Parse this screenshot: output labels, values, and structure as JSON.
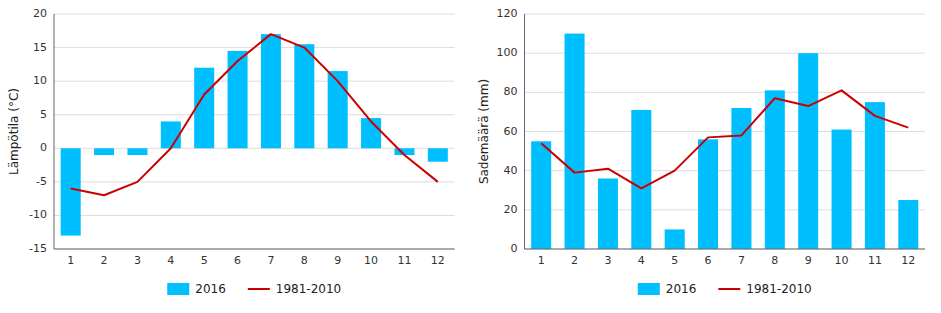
{
  "chart_data": [
    {
      "type": "bar",
      "categories": [
        "1",
        "2",
        "3",
        "4",
        "5",
        "6",
        "7",
        "8",
        "9",
        "10",
        "11",
        "12"
      ],
      "series": [
        {
          "name": "2016",
          "type": "bar",
          "color": "#00BFFF",
          "values": [
            -13,
            -1,
            -1,
            4,
            12,
            14.5,
            17,
            15.5,
            11.5,
            4.5,
            -1,
            -2
          ]
        },
        {
          "name": "1981-2010",
          "type": "line",
          "color": "#CC0000",
          "values": [
            -6,
            -7,
            -5,
            0,
            8,
            13,
            17,
            15,
            10,
            4,
            -1,
            -5
          ]
        }
      ],
      "ylabel": "Lämpötila (°C)",
      "ylim": [
        -15,
        20
      ],
      "yticks": [
        -15,
        -10,
        -5,
        0,
        5,
        10,
        15,
        20
      ],
      "grid": true,
      "legend": "bottom"
    },
    {
      "type": "bar",
      "categories": [
        "1",
        "2",
        "3",
        "4",
        "5",
        "6",
        "7",
        "8",
        "9",
        "10",
        "11",
        "12"
      ],
      "series": [
        {
          "name": "2016",
          "type": "bar",
          "color": "#00BFFF",
          "values": [
            55,
            110,
            36,
            71,
            10,
            56,
            72,
            81,
            100,
            61,
            75,
            25
          ]
        },
        {
          "name": "1981-2010",
          "type": "line",
          "color": "#CC0000",
          "values": [
            54,
            39,
            41,
            31,
            40,
            57,
            58,
            77,
            73,
            81,
            68,
            62
          ]
        }
      ],
      "ylabel": "Sademäärä (mm)",
      "ylim": [
        0,
        120
      ],
      "yticks": [
        0,
        20,
        40,
        60,
        80,
        100,
        120
      ],
      "grid": true,
      "legend": "bottom"
    }
  ]
}
